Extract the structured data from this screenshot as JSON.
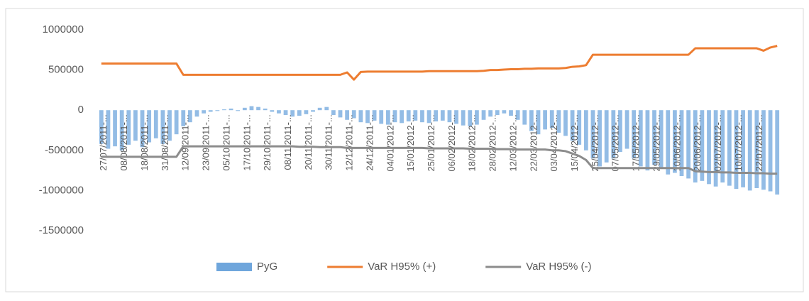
{
  "chart_data": {
    "type": "combo",
    "categories": [
      "27/07/2011-...",
      null,
      null,
      "08/08/2011-...",
      null,
      null,
      "18/08/2011-...",
      null,
      null,
      "31/08/2011-...",
      null,
      null,
      "12/09/2011-...",
      null,
      null,
      "23/09/2011-...",
      null,
      null,
      "05/10/2011-...",
      null,
      null,
      "17/10/2011-...",
      null,
      null,
      "29/10/2011-...",
      null,
      null,
      "08/11/2011-...",
      null,
      null,
      "20/11/2011-...",
      null,
      null,
      "30/11/2011-...",
      null,
      null,
      "12/12/2011-...",
      null,
      null,
      "24/12/2011-...",
      null,
      null,
      "04/01/2012-...",
      null,
      null,
      "15/01/2012-...",
      null,
      null,
      "25/01/2012-...",
      null,
      null,
      "06/02/2012-...",
      null,
      null,
      "18/02/2012-...",
      null,
      null,
      "28/02/2012-...",
      null,
      null,
      "12/03/2012-...",
      null,
      null,
      "22/03/2012-...",
      null,
      null,
      "03/04/2012-...",
      null,
      null,
      "15/04/2012-...",
      null,
      null,
      "25/04/2012-...",
      null,
      null,
      "07/05/2012-...",
      null,
      null,
      "17/05/2012-...",
      null,
      null,
      "29/05/2012-...",
      null,
      null,
      "10/06/2012-...",
      null,
      null,
      "20/06/2012-...",
      null,
      null,
      "02/07/2012-...",
      null,
      null,
      "10/07/2012-...",
      null,
      null,
      "22/07/2012-...",
      null,
      null,
      null
    ],
    "series": [
      {
        "name": "PyG",
        "kind": "bar",
        "color": "#6fa6dc",
        "values": [
          -420000,
          -480000,
          -450000,
          -500000,
          -430000,
          -380000,
          -460000,
          -400000,
          -350000,
          -420000,
          -380000,
          -300000,
          -200000,
          -150000,
          -80000,
          -40000,
          -20000,
          -10000,
          10000,
          20000,
          -10000,
          30000,
          50000,
          40000,
          20000,
          -20000,
          -40000,
          -60000,
          -80000,
          -70000,
          -50000,
          -20000,
          30000,
          40000,
          -60000,
          -90000,
          -120000,
          -100000,
          -150000,
          -160000,
          -130000,
          -170000,
          -180000,
          -150000,
          -160000,
          -140000,
          -130000,
          -150000,
          -160000,
          -140000,
          -130000,
          -150000,
          -170000,
          -190000,
          -200000,
          -180000,
          -120000,
          -80000,
          -60000,
          -40000,
          -70000,
          -120000,
          -180000,
          -260000,
          -300000,
          -240000,
          -220000,
          -280000,
          -320000,
          -380000,
          -430000,
          -500000,
          -600000,
          -700000,
          -650000,
          -600000,
          -520000,
          -480000,
          -600000,
          -700000,
          -750000,
          -680000,
          -720000,
          -800000,
          -780000,
          -820000,
          -850000,
          -900000,
          -880000,
          -920000,
          -950000,
          -900000,
          -940000,
          -980000,
          -960000,
          -1000000,
          -970000,
          -990000,
          -1010000,
          -1050000
        ]
      },
      {
        "name": "VaR H95% (+)",
        "kind": "line",
        "color": "#ed7d31",
        "values": [
          580000,
          580000,
          580000,
          580000,
          580000,
          580000,
          580000,
          580000,
          580000,
          580000,
          580000,
          580000,
          440000,
          440000,
          440000,
          440000,
          440000,
          440000,
          440000,
          440000,
          440000,
          440000,
          440000,
          440000,
          440000,
          440000,
          440000,
          440000,
          440000,
          440000,
          440000,
          440000,
          440000,
          440000,
          440000,
          440000,
          470000,
          380000,
          475000,
          480000,
          480000,
          480000,
          480000,
          480000,
          480000,
          480000,
          480000,
          480000,
          485000,
          485000,
          485000,
          485000,
          485000,
          485000,
          485000,
          485000,
          490000,
          500000,
          500000,
          505000,
          510000,
          510000,
          515000,
          515000,
          520000,
          520000,
          520000,
          520000,
          525000,
          540000,
          545000,
          560000,
          690000,
          690000,
          690000,
          690000,
          690000,
          690000,
          690000,
          690000,
          690000,
          690000,
          690000,
          690000,
          690000,
          690000,
          690000,
          770000,
          770000,
          770000,
          770000,
          770000,
          770000,
          770000,
          770000,
          770000,
          770000,
          740000,
          780000,
          800000
        ]
      },
      {
        "name": "VaR H95% (-)",
        "kind": "line",
        "color": "#8c8c8c",
        "values": [
          -580000,
          -580000,
          -580000,
          -580000,
          -580000,
          -580000,
          -580000,
          -580000,
          -580000,
          -580000,
          -580000,
          -580000,
          -450000,
          -450000,
          -450000,
          -450000,
          -450000,
          -450000,
          -450000,
          -450000,
          -450000,
          -450000,
          -450000,
          -450000,
          -450000,
          -450000,
          -450000,
          -450000,
          -450000,
          -455000,
          -455000,
          -455000,
          -460000,
          -460000,
          -460000,
          -460000,
          -470000,
          -470000,
          -470000,
          -470000,
          -470000,
          -470000,
          -470000,
          -470000,
          -470000,
          -470000,
          -470000,
          -470000,
          -475000,
          -475000,
          -475000,
          -475000,
          -475000,
          -475000,
          -480000,
          -480000,
          -480000,
          -480000,
          -485000,
          -485000,
          -485000,
          -490000,
          -490000,
          -490000,
          -490000,
          -490000,
          -500000,
          -500000,
          -510000,
          -540000,
          -570000,
          -620000,
          -720000,
          -720000,
          -720000,
          -720000,
          -720000,
          -720000,
          -720000,
          -720000,
          -720000,
          -720000,
          -720000,
          -720000,
          -720000,
          -720000,
          -720000,
          -760000,
          -765000,
          -770000,
          -770000,
          -775000,
          -775000,
          -780000,
          -780000,
          -780000,
          -785000,
          -785000,
          -790000,
          -790000
        ]
      }
    ],
    "ylim": [
      -1500000,
      1000000
    ],
    "yticks": [
      -1500000,
      -1000000,
      -500000,
      0,
      500000,
      1000000
    ],
    "grid": false,
    "legend": "bottom"
  }
}
